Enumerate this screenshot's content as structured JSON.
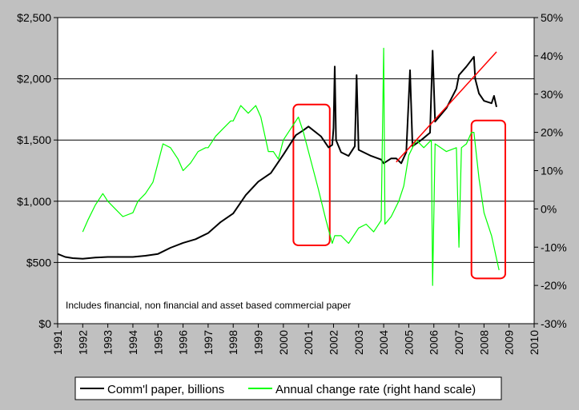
{
  "chart_data": {
    "type": "line",
    "title": "",
    "annotation": "Includes financial, non financial and asset based commercial paper",
    "x_ticks": [
      "1991",
      "1992",
      "1993",
      "1994",
      "1995",
      "1996",
      "1997",
      "1998",
      "1999",
      "2000",
      "2001",
      "2002",
      "2003",
      "2004",
      "2005",
      "2006",
      "2007",
      "2008",
      "2009",
      "2010"
    ],
    "x_range": [
      1991,
      2010
    ],
    "y_left": {
      "ticks": [
        "$0",
        "$500",
        "$1,000",
        "$1,500",
        "$2,000",
        "$2,500"
      ],
      "range": [
        0,
        2500
      ]
    },
    "y_right": {
      "ticks": [
        "-30%",
        "-20%",
        "-10%",
        "0%",
        "10%",
        "20%",
        "30%",
        "40%",
        "50%"
      ],
      "range": [
        -30,
        50
      ]
    },
    "grid": "horizontal",
    "legend_position": "bottom",
    "colors": {
      "plot_bg": "#ffffff",
      "page_bg": "#c0c0c0",
      "series_black": "#000000",
      "series_green": "#00ff00",
      "trend": "#ff0000",
      "highlight": "#ff0000"
    },
    "series": [
      {
        "name": "Comm'l paper, billions",
        "axis": "left",
        "color": "#000000",
        "points": [
          [
            1991.0,
            570
          ],
          [
            1991.3,
            545
          ],
          [
            1991.6,
            535
          ],
          [
            1992.0,
            530
          ],
          [
            1992.5,
            540
          ],
          [
            1993.0,
            545
          ],
          [
            1993.5,
            545
          ],
          [
            1994.0,
            545
          ],
          [
            1994.5,
            555
          ],
          [
            1995.0,
            570
          ],
          [
            1995.5,
            620
          ],
          [
            1996.0,
            660
          ],
          [
            1996.5,
            690
          ],
          [
            1997.0,
            740
          ],
          [
            1997.5,
            830
          ],
          [
            1998.0,
            900
          ],
          [
            1998.5,
            1050
          ],
          [
            1999.0,
            1160
          ],
          [
            1999.5,
            1230
          ],
          [
            2000.0,
            1380
          ],
          [
            2000.5,
            1540
          ],
          [
            2000.8,
            1580
          ],
          [
            2001.0,
            1610
          ],
          [
            2001.5,
            1530
          ],
          [
            2001.8,
            1440
          ],
          [
            2001.95,
            1460
          ],
          [
            2002.0,
            1600
          ],
          [
            2002.05,
            2100
          ],
          [
            2002.1,
            1500
          ],
          [
            2002.3,
            1400
          ],
          [
            2002.6,
            1370
          ],
          [
            2002.85,
            1450
          ],
          [
            2002.92,
            2030
          ],
          [
            2003.0,
            1420
          ],
          [
            2003.5,
            1370
          ],
          [
            2003.9,
            1340
          ],
          [
            2004.0,
            1310
          ],
          [
            2004.3,
            1350
          ],
          [
            2004.5,
            1350
          ],
          [
            2004.7,
            1310
          ],
          [
            2004.9,
            1400
          ],
          [
            2005.05,
            2070
          ],
          [
            2005.15,
            1450
          ],
          [
            2005.5,
            1500
          ],
          [
            2005.85,
            1560
          ],
          [
            2005.95,
            2230
          ],
          [
            2006.05,
            1650
          ],
          [
            2006.5,
            1760
          ],
          [
            2006.9,
            1920
          ],
          [
            2007.0,
            2030
          ],
          [
            2007.3,
            2100
          ],
          [
            2007.6,
            2180
          ],
          [
            2007.65,
            2000
          ],
          [
            2007.8,
            1880
          ],
          [
            2008.0,
            1820
          ],
          [
            2008.3,
            1800
          ],
          [
            2008.4,
            1860
          ],
          [
            2008.5,
            1770
          ]
        ]
      },
      {
        "name": "Annual change rate (right hand scale)",
        "axis": "right",
        "color": "#00ff00",
        "points": [
          [
            1992.0,
            -6
          ],
          [
            1992.2,
            -3
          ],
          [
            1992.5,
            1
          ],
          [
            1992.8,
            4
          ],
          [
            1993.0,
            2
          ],
          [
            1993.3,
            0
          ],
          [
            1993.6,
            -2
          ],
          [
            1994.0,
            -1
          ],
          [
            1994.2,
            2
          ],
          [
            1994.5,
            4
          ],
          [
            1994.8,
            7
          ],
          [
            1995.0,
            12
          ],
          [
            1995.2,
            17
          ],
          [
            1995.5,
            16
          ],
          [
            1995.8,
            13
          ],
          [
            1996.0,
            10
          ],
          [
            1996.3,
            12
          ],
          [
            1996.6,
            15
          ],
          [
            1996.9,
            16
          ],
          [
            1997.0,
            16
          ],
          [
            1997.3,
            19
          ],
          [
            1997.6,
            21
          ],
          [
            1997.9,
            23
          ],
          [
            1998.0,
            23
          ],
          [
            1998.3,
            27
          ],
          [
            1998.6,
            25
          ],
          [
            1998.9,
            27
          ],
          [
            1999.1,
            24
          ],
          [
            1999.4,
            15
          ],
          [
            1999.6,
            15
          ],
          [
            1999.8,
            13
          ],
          [
            2000.0,
            18
          ],
          [
            2000.3,
            21
          ],
          [
            2000.6,
            24
          ],
          [
            2000.8,
            20
          ],
          [
            2001.0,
            15
          ],
          [
            2001.4,
            5
          ],
          [
            2001.7,
            -3
          ],
          [
            2001.95,
            -9
          ],
          [
            2002.05,
            -7
          ],
          [
            2002.3,
            -7
          ],
          [
            2002.6,
            -9
          ],
          [
            2002.9,
            -6
          ],
          [
            2003.0,
            -5
          ],
          [
            2003.3,
            -4
          ],
          [
            2003.6,
            -6
          ],
          [
            2003.9,
            -3
          ],
          [
            2004.0,
            42
          ],
          [
            2004.05,
            -4
          ],
          [
            2004.3,
            -2
          ],
          [
            2004.6,
            2
          ],
          [
            2004.8,
            6
          ],
          [
            2005.0,
            14
          ],
          [
            2005.3,
            18
          ],
          [
            2005.6,
            16
          ],
          [
            2005.9,
            18
          ],
          [
            2005.95,
            -20
          ],
          [
            2006.05,
            17
          ],
          [
            2006.5,
            15
          ],
          [
            2006.9,
            16
          ],
          [
            2007.0,
            -10
          ],
          [
            2007.1,
            16
          ],
          [
            2007.3,
            17
          ],
          [
            2007.5,
            20
          ],
          [
            2007.6,
            20
          ],
          [
            2007.8,
            8
          ],
          [
            2008.0,
            -1
          ],
          [
            2008.3,
            -7
          ],
          [
            2008.5,
            -13
          ],
          [
            2008.6,
            -16
          ]
        ]
      }
    ],
    "trend_line": [
      [
        2004.5,
        1320
      ],
      [
        2008.5,
        2220
      ]
    ],
    "highlight_boxes": [
      {
        "x": [
          2000.4,
          2001.85
        ],
        "y_left": [
          640,
          1790
        ]
      },
      {
        "x": [
          2007.5,
          2008.85
        ],
        "y_left": [
          370,
          1660
        ]
      }
    ]
  }
}
